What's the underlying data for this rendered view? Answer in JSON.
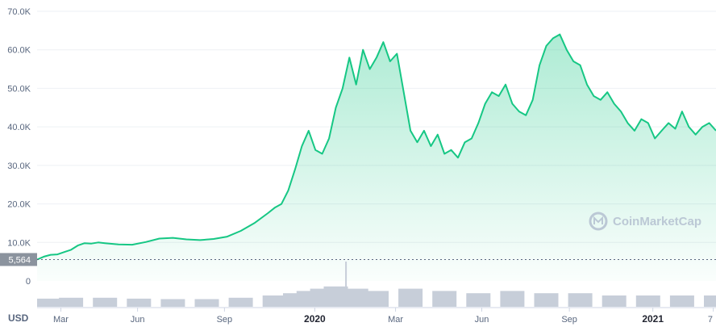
{
  "chart_data": {
    "type": "area",
    "ylim": [
      0,
      70000
    ],
    "y_ticks": [
      {
        "value": 70000,
        "label": "70.0K"
      },
      {
        "value": 60000,
        "label": "60.0K"
      },
      {
        "value": 50000,
        "label": "50.0K"
      },
      {
        "value": 40000,
        "label": "40.0K"
      },
      {
        "value": 30000,
        "label": "30.0K"
      },
      {
        "value": 20000,
        "label": "20.0K"
      },
      {
        "value": 10000,
        "label": "10.0K"
      },
      {
        "value": 0,
        "label": "0"
      }
    ],
    "x_ticks": [
      {
        "t": 0.035,
        "label": "Mar",
        "strong": false
      },
      {
        "t": 0.148,
        "label": "Jun",
        "strong": false
      },
      {
        "t": 0.276,
        "label": "Sep",
        "strong": false
      },
      {
        "t": 0.409,
        "label": "2020",
        "strong": true
      },
      {
        "t": 0.528,
        "label": "Mar",
        "strong": false
      },
      {
        "t": 0.655,
        "label": "Jun",
        "strong": false
      },
      {
        "t": 0.784,
        "label": "Sep",
        "strong": false
      },
      {
        "t": 0.907,
        "label": "2021",
        "strong": true
      },
      {
        "t": 0.996,
        "label": "7",
        "strong": false
      }
    ],
    "start_value_label": "5,564",
    "start_value": 5564,
    "currency_label": "USD",
    "grid": true,
    "line_color": "#16c784",
    "watermark": "CoinMarketCap",
    "series": [
      {
        "x": [
          0,
          0.01,
          0.02,
          0.03,
          0.04,
          0.05,
          0.06,
          0.07,
          0.08,
          0.09,
          0.1,
          0.12,
          0.14,
          0.16,
          0.18,
          0.2,
          0.22,
          0.24,
          0.26,
          0.28,
          0.3,
          0.32,
          0.34,
          0.35,
          0.36,
          0.37,
          0.38,
          0.39,
          0.4,
          0.41,
          0.42,
          0.43,
          0.44,
          0.45,
          0.46,
          0.47,
          0.48,
          0.49,
          0.5,
          0.51,
          0.52,
          0.53,
          0.54,
          0.55,
          0.56,
          0.57,
          0.58,
          0.59,
          0.6,
          0.61,
          0.62,
          0.63,
          0.64,
          0.65,
          0.66,
          0.67,
          0.68,
          0.69,
          0.7,
          0.71,
          0.72,
          0.73,
          0.74,
          0.75,
          0.76,
          0.77,
          0.78,
          0.79,
          0.8,
          0.81,
          0.82,
          0.83,
          0.84,
          0.85,
          0.86,
          0.87,
          0.88,
          0.89,
          0.9,
          0.91,
          0.92,
          0.93,
          0.94,
          0.95,
          0.96,
          0.97,
          0.98,
          0.99,
          1.0
        ],
        "values": [
          5564,
          6300,
          6800,
          6900,
          7500,
          8100,
          9200,
          9800,
          9700,
          10000,
          9800,
          9500,
          9400,
          10100,
          11000,
          11200,
          10800,
          10600,
          10900,
          11500,
          13000,
          15000,
          17600,
          19000,
          20000,
          23500,
          29000,
          35000,
          39000,
          34000,
          33000,
          37000,
          45000,
          50000,
          58000,
          51000,
          60000,
          55000,
          58000,
          62000,
          57000,
          59000,
          49000,
          39000,
          36000,
          39000,
          35000,
          38000,
          33000,
          34000,
          32000,
          36000,
          37000,
          41000,
          46000,
          49000,
          48000,
          51000,
          46000,
          44000,
          43000,
          47000,
          56000,
          61000,
          63000,
          64000,
          60000,
          57000,
          56000,
          51000,
          48000,
          47000,
          49000,
          46000,
          44000,
          41000,
          39000,
          42000,
          41000,
          37000,
          39000,
          41000,
          39500,
          44000,
          40000,
          38000,
          40000,
          41000,
          39000
        ]
      }
    ],
    "volume_series": [
      {
        "x": [
          0.0,
          0.05,
          0.1,
          0.15,
          0.2,
          0.25,
          0.3,
          0.35,
          0.38,
          0.4,
          0.42,
          0.44,
          0.455,
          0.47,
          0.5,
          0.55,
          0.6,
          0.65,
          0.7,
          0.75,
          0.8,
          0.85,
          0.9,
          0.95,
          1.0
        ],
        "values": [
          0.18,
          0.2,
          0.2,
          0.18,
          0.17,
          0.17,
          0.2,
          0.25,
          0.3,
          0.35,
          0.4,
          0.45,
          1.0,
          0.4,
          0.35,
          0.4,
          0.35,
          0.3,
          0.35,
          0.3,
          0.3,
          0.25,
          0.25,
          0.25,
          0.25
        ]
      }
    ]
  }
}
